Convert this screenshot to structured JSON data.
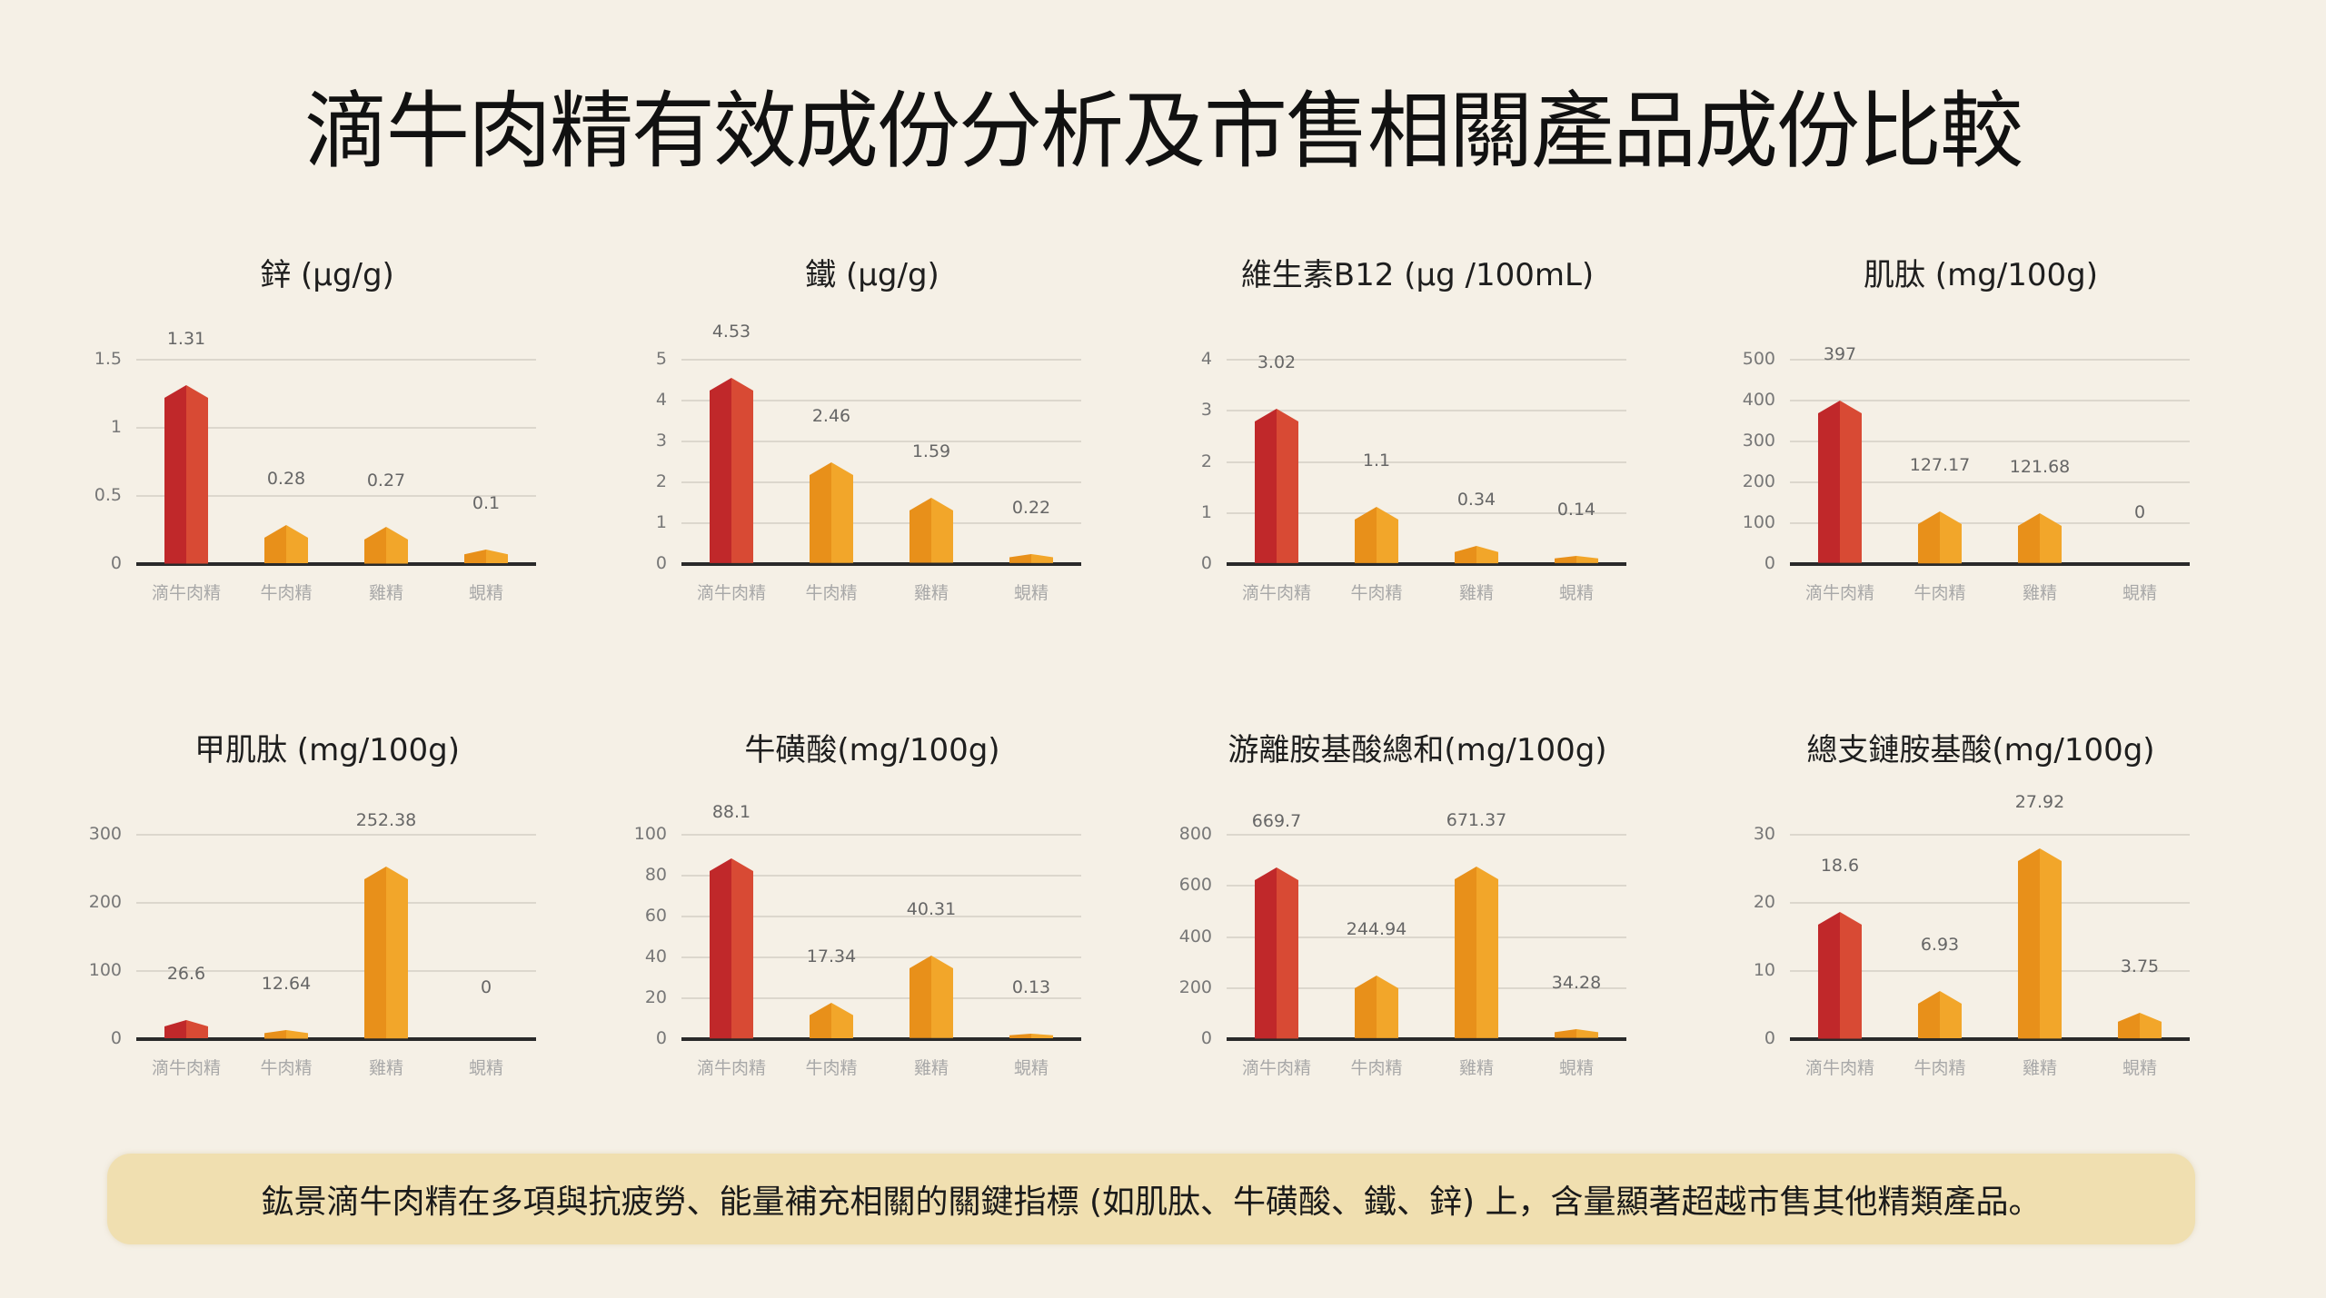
{
  "page": {
    "title": "滴牛肉精有效成份分析及市售相關產品成份比較",
    "summary": "鈜景滴牛肉精在多項與抗疲勞、能量補充相關的關鍵指標 (如肌肽、牛磺酸、鐵、鋅) 上，含量顯著超越市售其他精類產品。"
  },
  "colors": {
    "background": "#f5f0e6",
    "highlight_bar": "#c0282a",
    "highlight_bar_light": "#d84a34",
    "other_bar": "#e8901a",
    "other_bar_light": "#f2a62a",
    "summary_box": "#f0dfb0"
  },
  "chart_data": [
    {
      "type": "bar",
      "title": "鋅 (μg/g)",
      "categories": [
        "滴牛肉精",
        "牛肉精",
        "雞精",
        "蜆精"
      ],
      "values": [
        1.31,
        0.28,
        0.27,
        0.1
      ],
      "value_labels": [
        "1.31",
        "0.28",
        "0.27",
        "0.1"
      ],
      "yticks": [
        "0",
        "0.5",
        "1",
        "1.5"
      ],
      "ylim": [
        0,
        1.5
      ],
      "xlabel": "",
      "ylabel": "",
      "grid": true,
      "legend": "none"
    },
    {
      "type": "bar",
      "title": "鐵 (μg/g)",
      "categories": [
        "滴牛肉精",
        "牛肉精",
        "雞精",
        "蜆精"
      ],
      "values": [
        4.53,
        2.46,
        1.59,
        0.22
      ],
      "value_labels": [
        "4.53",
        "2.46",
        "1.59",
        "0.22"
      ],
      "yticks": [
        "0",
        "1",
        "2",
        "3",
        "4",
        "5"
      ],
      "ylim": [
        0,
        5
      ],
      "xlabel": "",
      "ylabel": "",
      "grid": true,
      "legend": "none"
    },
    {
      "type": "bar",
      "title": "維生素B12  (μg /100mL)",
      "categories": [
        "滴牛肉精",
        "牛肉精",
        "雞精",
        "蜆精"
      ],
      "values": [
        3.02,
        1.1,
        0.34,
        0.14
      ],
      "value_labels": [
        "3.02",
        "1.1",
        "0.34",
        "0.14"
      ],
      "yticks": [
        "0",
        "1",
        "2",
        "3",
        "4"
      ],
      "ylim": [
        0,
        4
      ],
      "xlabel": "",
      "ylabel": "",
      "grid": true,
      "legend": "none"
    },
    {
      "type": "bar",
      "title": "肌肽 (mg/100g)",
      "categories": [
        "滴牛肉精",
        "牛肉精",
        "雞精",
        "蜆精"
      ],
      "values": [
        397,
        127.17,
        121.68,
        0
      ],
      "value_labels": [
        "397",
        "127.17",
        "121.68",
        "0"
      ],
      "yticks": [
        "0",
        "100",
        "200",
        "300",
        "400",
        "500"
      ],
      "ylim": [
        0,
        500
      ],
      "xlabel": "",
      "ylabel": "",
      "grid": true,
      "legend": "none"
    },
    {
      "type": "bar",
      "title": "甲肌肽 (mg/100g)",
      "categories": [
        "滴牛肉精",
        "牛肉精",
        "雞精",
        "蜆精"
      ],
      "values": [
        26.6,
        12.64,
        252.38,
        0
      ],
      "value_labels": [
        "26.6",
        "12.64",
        "252.38",
        "0"
      ],
      "yticks": [
        "0",
        "100",
        "200",
        "300"
      ],
      "ylim": [
        0,
        300
      ],
      "xlabel": "",
      "ylabel": "",
      "grid": true,
      "legend": "none"
    },
    {
      "type": "bar",
      "title": "牛磺酸(mg/100g)",
      "categories": [
        "滴牛肉精",
        "牛肉精",
        "雞精",
        "蜆精"
      ],
      "values": [
        88.1,
        17.34,
        40.31,
        0.13
      ],
      "value_labels": [
        "88.1",
        "17.34",
        "40.31",
        "0.13"
      ],
      "yticks": [
        "0",
        "20",
        "40",
        "60",
        "80",
        "100"
      ],
      "ylim": [
        0,
        100
      ],
      "xlabel": "",
      "ylabel": "",
      "grid": true,
      "legend": "none"
    },
    {
      "type": "bar",
      "title": "游離胺基酸總和(mg/100g)",
      "categories": [
        "滴牛肉精",
        "牛肉精",
        "雞精",
        "蜆精"
      ],
      "values": [
        669.7,
        244.94,
        671.37,
        34.28
      ],
      "value_labels": [
        "669.7",
        "244.94",
        "671.37",
        "34.28"
      ],
      "yticks": [
        "0",
        "200",
        "400",
        "600",
        "800"
      ],
      "ylim": [
        0,
        800
      ],
      "xlabel": "",
      "ylabel": "",
      "grid": true,
      "legend": "none"
    },
    {
      "type": "bar",
      "title": "總支鏈胺基酸(mg/100g)",
      "categories": [
        "滴牛肉精",
        "牛肉精",
        "雞精",
        "蜆精"
      ],
      "values": [
        18.6,
        6.93,
        27.92,
        3.75
      ],
      "value_labels": [
        "18.6",
        "6.93",
        "27.92",
        "3.75"
      ],
      "yticks": [
        "0",
        "10",
        "20",
        "30"
      ],
      "ylim": [
        0,
        30
      ],
      "xlabel": "",
      "ylabel": "",
      "grid": true,
      "legend": "none"
    }
  ]
}
